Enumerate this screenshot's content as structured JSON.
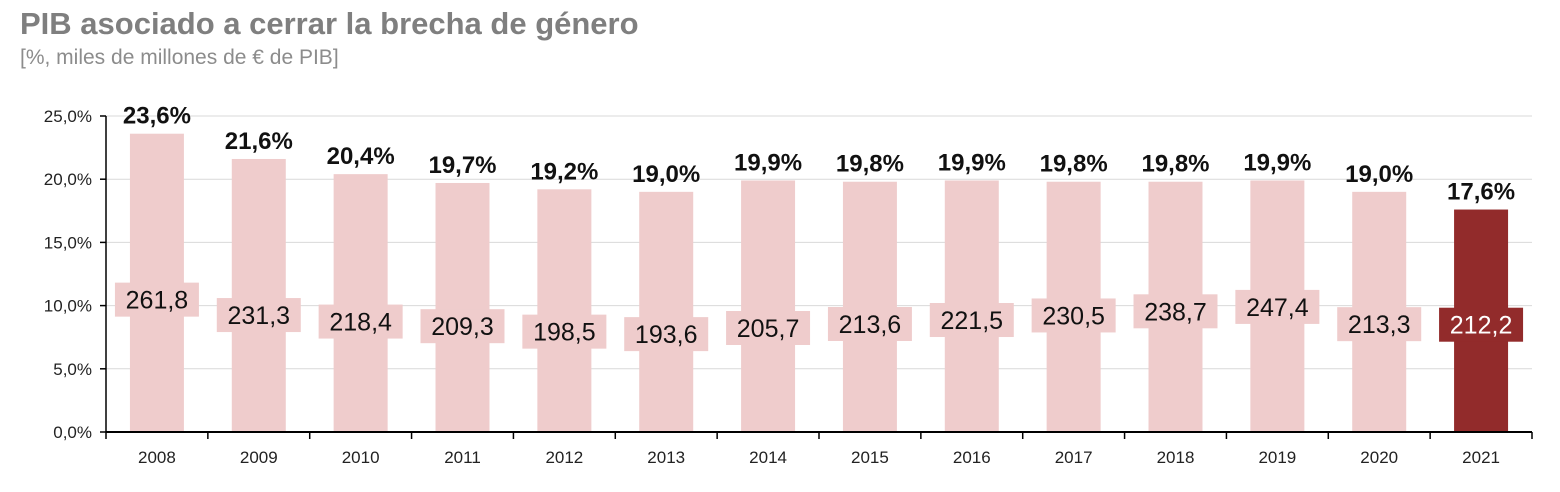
{
  "title": "PIB asociado a cerrar la brecha de género",
  "subtitle": "[%, miles de millones de € de PIB]",
  "colors": {
    "bar": "#efcccc",
    "highlight": "#922b2b",
    "label_box": "#efcccc",
    "highlight_text": "#ffffff",
    "text": "#111111",
    "grid": "#d9d9d9"
  },
  "chart_data": {
    "type": "bar",
    "title": "PIB asociado a cerrar la brecha de género",
    "subtitle": "[%, miles de millones de € de PIB]",
    "categories": [
      "2008",
      "2009",
      "2010",
      "2011",
      "2012",
      "2013",
      "2014",
      "2015",
      "2016",
      "2017",
      "2018",
      "2019",
      "2020",
      "2021"
    ],
    "series": [
      {
        "values": [
          23.6,
          21.6,
          20.4,
          19.7,
          19.2,
          19.0,
          19.9,
          19.8,
          19.9,
          19.8,
          19.8,
          19.9,
          19.0,
          17.6
        ],
        "labels": [
          "23,6%",
          "21,6%",
          "20,4%",
          "19,7%",
          "19,2%",
          "19,0%",
          "19,9%",
          "19,8%",
          "19,9%",
          "19,8%",
          "19,8%",
          "19,9%",
          "19,0%",
          "17,6%"
        ]
      },
      {
        "values": [
          261.8,
          231.3,
          218.4,
          209.3,
          198.5,
          193.6,
          205.7,
          213.6,
          221.5,
          230.5,
          238.7,
          247.4,
          213.3,
          212.2
        ],
        "labels": [
          "261,8",
          "231,3",
          "218,4",
          "209,3",
          "198,5",
          "193,6",
          "205,7",
          "213,6",
          "221,5",
          "230,5",
          "238,7",
          "247,4",
          "213,3",
          "212,2"
        ]
      }
    ],
    "highlight_category": "2021",
    "ylim": [
      0,
      25
    ],
    "yticks": [
      0,
      5,
      10,
      15,
      20,
      25
    ],
    "ytick_labels": [
      "0,0%",
      "5,0%",
      "10,0%",
      "15,0%",
      "20,0%",
      "25,0%"
    ],
    "xlabel": "",
    "ylabel": "",
    "grid": true,
    "legend": "none"
  }
}
